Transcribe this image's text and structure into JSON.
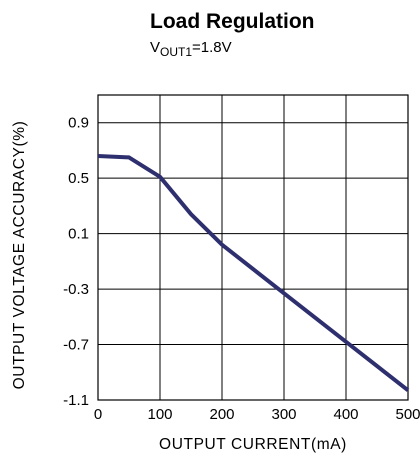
{
  "chart_data": {
    "type": "line",
    "title": "Load Regulation",
    "subtitle": {
      "prefix": "V",
      "subscript": "OUT1",
      "suffix": "=1.8V"
    },
    "xlabel": "OUTPUT CURRENT(mA)",
    "ylabel": "OUTPUT VOLTAGE ACCURACY(%)",
    "xlim": [
      0,
      500
    ],
    "ylim": [
      -1.1,
      1.1
    ],
    "xticks": [
      0,
      100,
      200,
      300,
      400,
      500
    ],
    "xtick_labels": [
      "0",
      "100",
      "200",
      "300",
      "400",
      "500"
    ],
    "yticks": [
      0.9,
      0.5,
      0.1,
      -0.3,
      -0.7,
      -1.1
    ],
    "ytick_labels": [
      "0.9",
      "0.5",
      "0.1",
      "-0.3",
      "-0.7",
      "-1.1"
    ],
    "grid": true,
    "series": [
      {
        "x": [
          0,
          50,
          100,
          150,
          200,
          300,
          400,
          500
        ],
        "y": [
          0.66,
          0.65,
          0.51,
          0.24,
          0.02,
          -0.33,
          -0.68,
          -1.03
        ]
      }
    ],
    "line_color": "#2e2f6e"
  }
}
